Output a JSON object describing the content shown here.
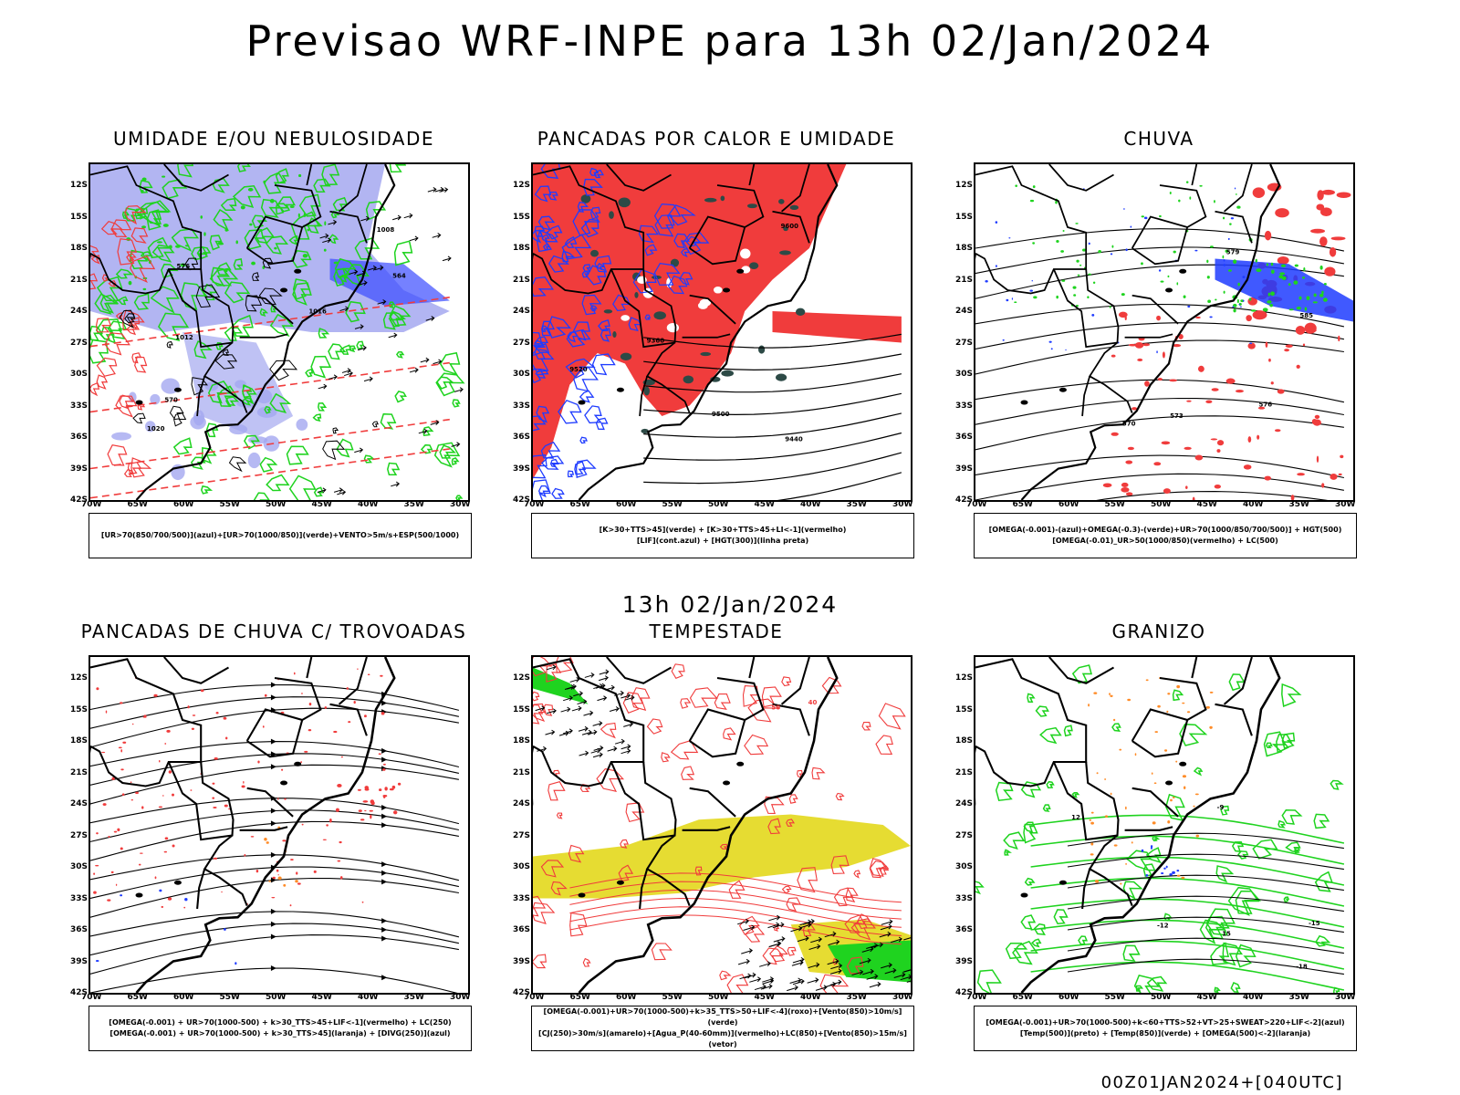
{
  "header": {
    "title": "Previsao WRF-INPE  para 13h 02/Jan/2024",
    "mid_title": "13h 02/Jan/2024",
    "footer": "00Z01JAN2024+[040UTC]"
  },
  "axes": {
    "lat_labels": [
      "12S",
      "15S",
      "18S",
      "21S",
      "24S",
      "27S",
      "30S",
      "33S",
      "36S",
      "39S",
      "42S"
    ],
    "lon_labels": [
      "70W",
      "65W",
      "60W",
      "55W",
      "50W",
      "45W",
      "40W",
      "35W",
      "30W"
    ]
  },
  "colors": {
    "green": "#1fd31f",
    "red": "#f03c3c",
    "blue": "#1f3cff",
    "lavender": "#a4a8f0",
    "orange": "#ff8c28",
    "yellow": "#e6dc32",
    "darkteal": "#2d4a46",
    "black": "#000000"
  },
  "panels": [
    {
      "id": "umidade",
      "title": "UMIDADE E/OU NEBULOSIDADE",
      "legend": [
        "[UR>70(850/700/500)](azul)+[UR>70(1000/850)](verde)+VENTO>5m/s+ESP(500/1000)"
      ],
      "contour_labels": [
        "1008",
        "1012",
        "1016",
        "1020",
        "564",
        "570",
        "576"
      ]
    },
    {
      "id": "pancadas-calor",
      "title": "PANCADAS POR CALOR E UMIDADE",
      "legend": [
        "[K>30+TTS>45](verde) + [K>30+TTS>45+LI<-1](vermelho)",
        "[LIF](cont.azul) + [HGT(300)](linha preta)"
      ],
      "contour_labels": [
        "9600",
        "9520",
        "9440",
        "9360",
        "9500"
      ]
    },
    {
      "id": "chuva",
      "title": "CHUVA",
      "legend": [
        "[OMEGA(-0.001)-(azul)+OMEGA(-0.3)-(verde)+UR>70(1000/850/700/500)] + HGT(500)",
        "[OMEGA(-0.01)_UR>50(1000/850)(vermelho) + LC(500)"
      ],
      "contour_labels": [
        "585",
        "579",
        "576",
        "573",
        "570"
      ]
    },
    {
      "id": "pancadas-trovoadas",
      "title": "PANCADAS DE CHUVA C/ TROVOADAS",
      "legend": [
        "[OMEGA(-0.001) + UR>70(1000-500) + k>30_TTS>45+LIF<-1](vermelho) + LC(250)",
        "[OMEGA(-0.001) + UR>70(1000-500) + k>30_TTS>45](laranja) + [DIVG(250)](azul)"
      ],
      "contour_labels": []
    },
    {
      "id": "tempestade",
      "title": "TEMPESTADE",
      "legend": [
        "[OMEGA(-0.001)+UR>70(1000-500)+k>35_TTS>50+LIF<-4](roxo)+[Vento(850)>10m/s](verde)",
        "[CJ(250)>30m/s](amarelo)+[Agua_P(40-60mm)](vermelho)+LC(850)+[Vento(850)>15m/s](vetor)"
      ],
      "contour_labels": [
        "50",
        "40"
      ]
    },
    {
      "id": "granizo",
      "title": "GRANIZO",
      "legend": [
        "[OMEGA(-0.001)+UR>70(1000-500)+k<60+TTS>52+VT>25+SWEAT>220+LIF<-2](azul)",
        "[Temp(500)](preto) + [Temp(850)](verde) + [OMEGA(500)<-2](laranja)"
      ],
      "contour_labels": [
        "-9",
        "-12",
        "-15",
        "-18",
        "12",
        "15"
      ]
    }
  ]
}
